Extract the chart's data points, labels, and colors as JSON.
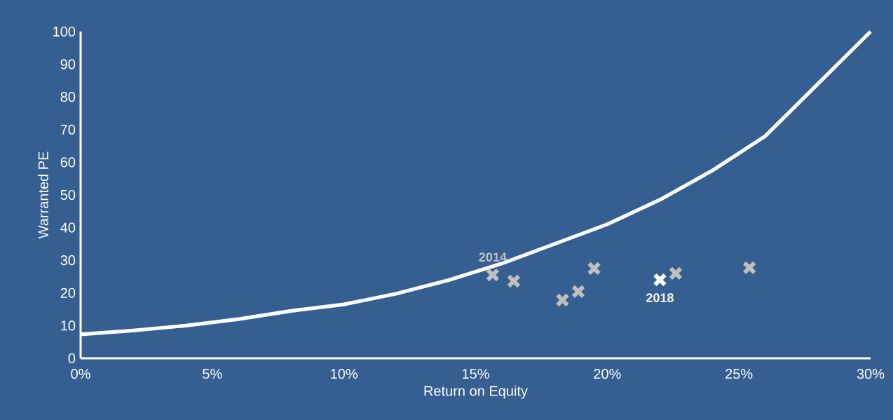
{
  "chart_data": {
    "type": "line",
    "xlabel": "Return on Equity",
    "ylabel": "Warranted PE",
    "xlim": [
      0,
      30
    ],
    "ylim": [
      0,
      100
    ],
    "xticks": [
      {
        "value": 0,
        "label": "0%"
      },
      {
        "value": 5,
        "label": "5%"
      },
      {
        "value": 10,
        "label": "10%"
      },
      {
        "value": 15,
        "label": "15%"
      },
      {
        "value": 20,
        "label": "20%"
      },
      {
        "value": 25,
        "label": "25%"
      },
      {
        "value": 30,
        "label": "30%"
      }
    ],
    "yticks": [
      0,
      10,
      20,
      30,
      40,
      50,
      60,
      70,
      80,
      90,
      100
    ],
    "series": [
      {
        "color": "#ffffff",
        "marker": "none",
        "x": [
          0,
          2,
          4,
          6,
          8,
          10,
          12,
          14,
          16,
          18,
          20,
          22,
          24,
          26,
          27,
          28,
          29,
          30
        ],
        "values": [
          7.3,
          8.5,
          10,
          12,
          14.5,
          16.5,
          19.8,
          24,
          29,
          35,
          41,
          48.5,
          57.5,
          68,
          76,
          84,
          92,
          100
        ]
      },
      {
        "type": "scatter",
        "marker": "cross",
        "x": [
          15.65,
          16.45,
          18.3,
          18.9,
          19.5,
          22.0,
          22.6,
          25.4
        ],
        "values": [
          25.5,
          23.6,
          17.8,
          20.4,
          27.5,
          24.0,
          26.0,
          27.7
        ],
        "colors": [
          "#bfbfbf",
          "#bfbfbf",
          "#bfbfbf",
          "#bfbfbf",
          "#bfbfbf",
          "#ffffff",
          "#bfbfbf",
          "#bfbfbf"
        ]
      }
    ],
    "annotations": [
      {
        "text": "2014",
        "x": 15.65,
        "y": 25.5
      },
      {
        "text": "2018",
        "x": 22.0,
        "y": 24.0
      }
    ]
  }
}
